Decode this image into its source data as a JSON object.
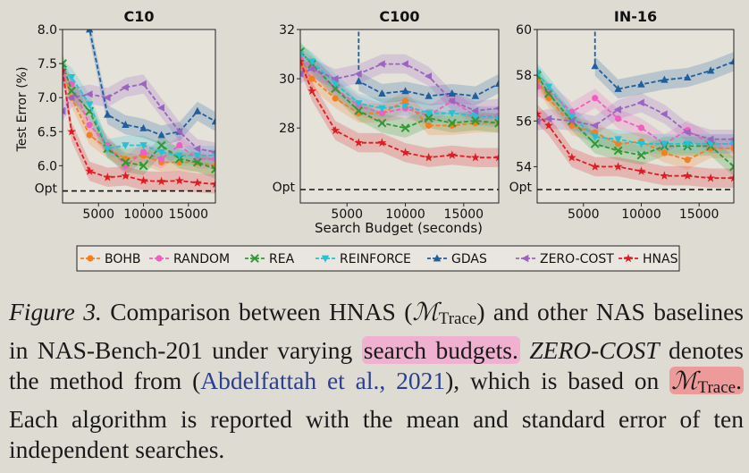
{
  "legend": [
    "BOHB",
    "RANDOM",
    "REA",
    "REINFORCE",
    "GDAS",
    "ZERO-COST",
    "HNAS"
  ],
  "colors": {
    "BOHB": "#f47f1f",
    "RANDOM": "#ef5fbf",
    "REA": "#2e9a34",
    "REINFORCE": "#26c2d2",
    "GDAS": "#1f5f9e",
    "ZERO-COST": "#9a64bf",
    "HNAS": "#e01b22"
  },
  "markers": {
    "BOHB": "circle",
    "RANDOM": "circle",
    "REA": "x",
    "REINFORCE": "tri-down",
    "GDAS": "tri-up",
    "ZERO-COST": "tri-left",
    "HNAS": "star"
  },
  "chart_data": [
    {
      "type": "line",
      "title": "C10",
      "ylabel": "Test Error (%)",
      "xlabel": "",
      "xlim": [
        1000,
        18000
      ],
      "ylim": [
        5.65,
        8.0
      ],
      "yticks": [
        "6.0",
        "6.5",
        "7.0",
        "7.5",
        "8.0"
      ],
      "ytick_values": [
        6.0,
        6.5,
        7.0,
        7.5,
        8.0
      ],
      "xticks": [
        "5000",
        "10000",
        "15000"
      ],
      "xtick_values": [
        5000,
        10000,
        15000
      ],
      "opt_value": 5.63,
      "opt_label": "Opt",
      "x": [
        1000,
        2000,
        4000,
        6000,
        8000,
        10000,
        12000,
        14000,
        16000,
        18000
      ],
      "series": [
        {
          "name": "BOHB",
          "values": [
            7.4,
            7.0,
            6.45,
            6.25,
            6.1,
            6.15,
            6.05,
            6.05,
            6.05,
            6.0
          ]
        },
        {
          "name": "RANDOM",
          "values": [
            7.3,
            7.2,
            6.6,
            6.3,
            6.0,
            6.2,
            6.1,
            6.3,
            6.1,
            6.1
          ]
        },
        {
          "name": "REA",
          "values": [
            7.5,
            7.1,
            6.8,
            6.25,
            6.05,
            6.0,
            6.3,
            6.1,
            6.05,
            5.95
          ]
        },
        {
          "name": "REINFORCE",
          "values": [
            7.4,
            7.3,
            6.9,
            6.25,
            6.3,
            6.3,
            6.2,
            6.15,
            6.15,
            6.15
          ]
        },
        {
          "name": "GDAS",
          "values": [
            null,
            null,
            8.0,
            6.75,
            6.6,
            6.55,
            6.45,
            6.5,
            6.8,
            6.65
          ]
        },
        {
          "name": "ZERO-COST",
          "values": [
            6.8,
            7.0,
            7.05,
            7.0,
            7.15,
            7.2,
            6.85,
            6.5,
            6.25,
            6.2
          ]
        },
        {
          "name": "HNAS",
          "values": [
            7.4,
            6.5,
            5.92,
            5.83,
            5.85,
            5.78,
            5.77,
            5.78,
            5.75,
            5.73
          ]
        }
      ]
    },
    {
      "type": "line",
      "title": "C100",
      "ylabel": "",
      "xlabel": "Search Budget (seconds)",
      "xlim": [
        1000,
        18000
      ],
      "ylim": [
        25.5,
        32.0
      ],
      "yticks": [
        "28",
        "30",
        "32"
      ],
      "ytick_values": [
        28,
        30,
        32
      ],
      "xticks": [
        "5000",
        "10000",
        "15000"
      ],
      "xtick_values": [
        5000,
        10000,
        15000
      ],
      "opt_value": 25.5,
      "opt_label": "Opt",
      "x": [
        1000,
        2000,
        4000,
        6000,
        8000,
        10000,
        12000,
        14000,
        16000,
        18000
      ],
      "series": [
        {
          "name": "BOHB",
          "values": [
            30.6,
            30.0,
            29.2,
            28.6,
            28.6,
            29.1,
            28.1,
            28.1,
            28.2,
            28.2
          ]
        },
        {
          "name": "RANDOM",
          "values": [
            30.8,
            30.5,
            29.6,
            28.9,
            28.6,
            28.8,
            28.5,
            29.1,
            28.5,
            28.5
          ]
        },
        {
          "name": "REA",
          "values": [
            31.1,
            30.6,
            29.6,
            28.7,
            28.2,
            28.0,
            28.4,
            28.2,
            28.3,
            28.2
          ]
        },
        {
          "name": "REINFORCE",
          "values": [
            31.0,
            30.7,
            29.8,
            29.0,
            28.8,
            28.9,
            28.6,
            28.6,
            28.5,
            28.4
          ]
        },
        {
          "name": "GDAS",
          "values": [
            null,
            null,
            null,
            29.9,
            29.4,
            29.5,
            29.3,
            29.4,
            29.3,
            29.8
          ]
        },
        {
          "name": "ZERO-COST",
          "values": [
            30.2,
            30.4,
            30.0,
            30.2,
            30.6,
            30.6,
            30.1,
            29.1,
            28.7,
            28.8
          ]
        },
        {
          "name": "HNAS",
          "values": [
            30.7,
            29.5,
            27.9,
            27.4,
            27.4,
            27.0,
            26.8,
            26.9,
            26.8,
            26.8
          ]
        }
      ]
    },
    {
      "type": "line",
      "title": "IN-16",
      "ylabel": "",
      "xlabel": "",
      "xlim": [
        1000,
        18000
      ],
      "ylim": [
        53.0,
        60.0
      ],
      "yticks": [
        "54",
        "56",
        "58",
        "60"
      ],
      "ytick_values": [
        54,
        56,
        58,
        60
      ],
      "xticks": [
        "5000",
        "10000",
        "15000"
      ],
      "xtick_values": [
        5000,
        10000,
        15000
      ],
      "opt_value": 53.0,
      "opt_label": "Opt",
      "x": [
        1000,
        2000,
        4000,
        6000,
        8000,
        10000,
        12000,
        14000,
        16000,
        18000
      ],
      "series": [
        {
          "name": "BOHB",
          "values": [
            57.8,
            57.0,
            55.8,
            55.5,
            55.0,
            55.1,
            54.6,
            54.3,
            54.8,
            54.8
          ]
        },
        {
          "name": "RANDOM",
          "values": [
            57.5,
            57.3,
            56.4,
            57.0,
            56.1,
            55.7,
            55.0,
            55.6,
            55.0,
            55.0
          ]
        },
        {
          "name": "REA",
          "values": [
            58.0,
            57.2,
            56.0,
            55.0,
            54.7,
            54.5,
            54.9,
            54.9,
            54.9,
            54.0
          ]
        },
        {
          "name": "REINFORCE",
          "values": [
            58.1,
            57.5,
            56.2,
            55.3,
            55.2,
            55.0,
            55.0,
            55.0,
            55.0,
            55.0
          ]
        },
        {
          "name": "GDAS",
          "values": [
            null,
            null,
            null,
            58.4,
            57.4,
            57.6,
            57.8,
            57.9,
            58.2,
            58.6
          ]
        },
        {
          "name": "ZERO-COST",
          "values": [
            56.0,
            56.1,
            56.0,
            55.8,
            56.5,
            56.8,
            56.3,
            55.5,
            55.2,
            55.2
          ]
        },
        {
          "name": "HNAS",
          "values": [
            56.3,
            55.8,
            54.4,
            54.0,
            54.0,
            53.8,
            53.6,
            53.6,
            53.5,
            53.5
          ]
        }
      ]
    }
  ],
  "caption": {
    "label": "Figure 3.",
    "t1": " Comparison between HNAS (",
    "m_sym": "ℳ",
    "m_sub": "Trace",
    "t2": ") and other NAS baselines in NAS-Bench-201 under varying ",
    "hl1": "search budgets.",
    "zc": "ZERO-COST",
    "t3": " denotes the method from (",
    "cite": "Abdelfattah et al., 2021",
    "t4": "), which is based on ",
    "hl2_end": ".",
    "t5": " Each algorithm is reported with the mean and standard error of ten independent searches."
  }
}
